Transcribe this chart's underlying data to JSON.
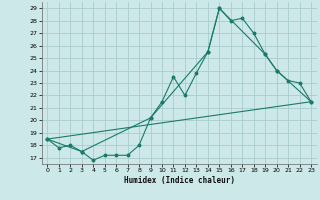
{
  "title": "",
  "xlabel": "Humidex (Indice chaleur)",
  "bg_color": "#cce8e8",
  "grid_color": "#aacccc",
  "line_color": "#1a7a6a",
  "xlim": [
    -0.5,
    23.5
  ],
  "ylim": [
    16.5,
    29.5
  ],
  "xticks": [
    0,
    1,
    2,
    3,
    4,
    5,
    6,
    7,
    8,
    9,
    10,
    11,
    12,
    13,
    14,
    15,
    16,
    17,
    18,
    19,
    20,
    21,
    22,
    23
  ],
  "yticks": [
    17,
    18,
    19,
    20,
    21,
    22,
    23,
    24,
    25,
    26,
    27,
    28,
    29
  ],
  "line1_x": [
    0,
    1,
    2,
    3,
    4,
    5,
    6,
    7,
    8,
    9,
    10,
    11,
    12,
    13,
    14,
    15,
    16,
    17,
    18,
    19,
    20,
    21,
    22,
    23
  ],
  "line1_y": [
    18.5,
    17.8,
    18.0,
    17.5,
    16.8,
    17.2,
    17.2,
    17.2,
    18.0,
    20.2,
    21.5,
    23.5,
    22.0,
    23.8,
    25.5,
    29.0,
    28.0,
    28.2,
    27.0,
    25.3,
    24.0,
    23.2,
    23.0,
    21.5
  ],
  "line2_x": [
    0,
    3,
    9,
    14,
    15,
    19,
    20,
    23
  ],
  "line2_y": [
    18.5,
    17.5,
    20.2,
    25.5,
    29.0,
    25.3,
    24.0,
    21.5
  ],
  "line3_x": [
    0,
    23
  ],
  "line3_y": [
    18.5,
    21.5
  ]
}
